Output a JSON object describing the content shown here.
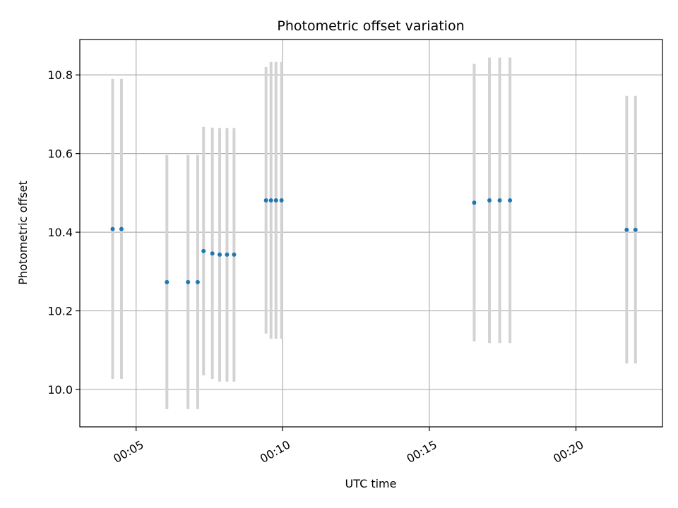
{
  "chart_data": {
    "type": "scatter",
    "title": "Photometric offset variation",
    "xlabel": "UTC time",
    "ylabel": "Photometric offset",
    "x_ticks": [
      "00:05",
      "00:10",
      "00:15",
      "00:20"
    ],
    "x_tick_values_min": [
      5,
      10,
      15,
      20
    ],
    "y_ticks": [
      "10.0",
      "10.2",
      "10.4",
      "10.6",
      "10.8"
    ],
    "y_tick_values": [
      10.0,
      10.2,
      10.4,
      10.6,
      10.8
    ],
    "xlim_min": [
      3.08,
      22.95
    ],
    "ylim": [
      9.905,
      10.89
    ],
    "grid": true,
    "colors": {
      "points": "#1f77b4",
      "errorbars": "#d3d3d3",
      "grid": "#b0b0b0"
    },
    "points": [
      {
        "t_min": 4.2,
        "y": 10.408,
        "yerr_low": 10.027,
        "yerr_high": 10.79
      },
      {
        "t_min": 4.5,
        "y": 10.408,
        "yerr_low": 10.027,
        "yerr_high": 10.79
      },
      {
        "t_min": 6.05,
        "y": 10.273,
        "yerr_low": 9.95,
        "yerr_high": 10.596
      },
      {
        "t_min": 6.77,
        "y": 10.273,
        "yerr_low": 9.95,
        "yerr_high": 10.596
      },
      {
        "t_min": 7.1,
        "y": 10.273,
        "yerr_low": 9.95,
        "yerr_high": 10.596
      },
      {
        "t_min": 7.3,
        "y": 10.352,
        "yerr_low": 10.036,
        "yerr_high": 10.668
      },
      {
        "t_min": 7.6,
        "y": 10.346,
        "yerr_low": 10.027,
        "yerr_high": 10.666
      },
      {
        "t_min": 7.85,
        "y": 10.343,
        "yerr_low": 10.02,
        "yerr_high": 10.665
      },
      {
        "t_min": 8.1,
        "y": 10.343,
        "yerr_low": 10.02,
        "yerr_high": 10.665
      },
      {
        "t_min": 8.34,
        "y": 10.343,
        "yerr_low": 10.02,
        "yerr_high": 10.665
      },
      {
        "t_min": 9.43,
        "y": 10.481,
        "yerr_low": 10.142,
        "yerr_high": 10.82
      },
      {
        "t_min": 9.6,
        "y": 10.481,
        "yerr_low": 10.129,
        "yerr_high": 10.833
      },
      {
        "t_min": 9.77,
        "y": 10.481,
        "yerr_low": 10.129,
        "yerr_high": 10.833
      },
      {
        "t_min": 9.96,
        "y": 10.481,
        "yerr_low": 10.129,
        "yerr_high": 10.833
      },
      {
        "t_min": 16.53,
        "y": 10.475,
        "yerr_low": 10.122,
        "yerr_high": 10.828
      },
      {
        "t_min": 17.05,
        "y": 10.481,
        "yerr_low": 10.118,
        "yerr_high": 10.844
      },
      {
        "t_min": 17.4,
        "y": 10.481,
        "yerr_low": 10.118,
        "yerr_high": 10.844
      },
      {
        "t_min": 17.75,
        "y": 10.481,
        "yerr_low": 10.118,
        "yerr_high": 10.844
      },
      {
        "t_min": 21.73,
        "y": 10.406,
        "yerr_low": 10.066,
        "yerr_high": 10.747
      },
      {
        "t_min": 22.03,
        "y": 10.406,
        "yerr_low": 10.066,
        "yerr_high": 10.747
      }
    ]
  }
}
